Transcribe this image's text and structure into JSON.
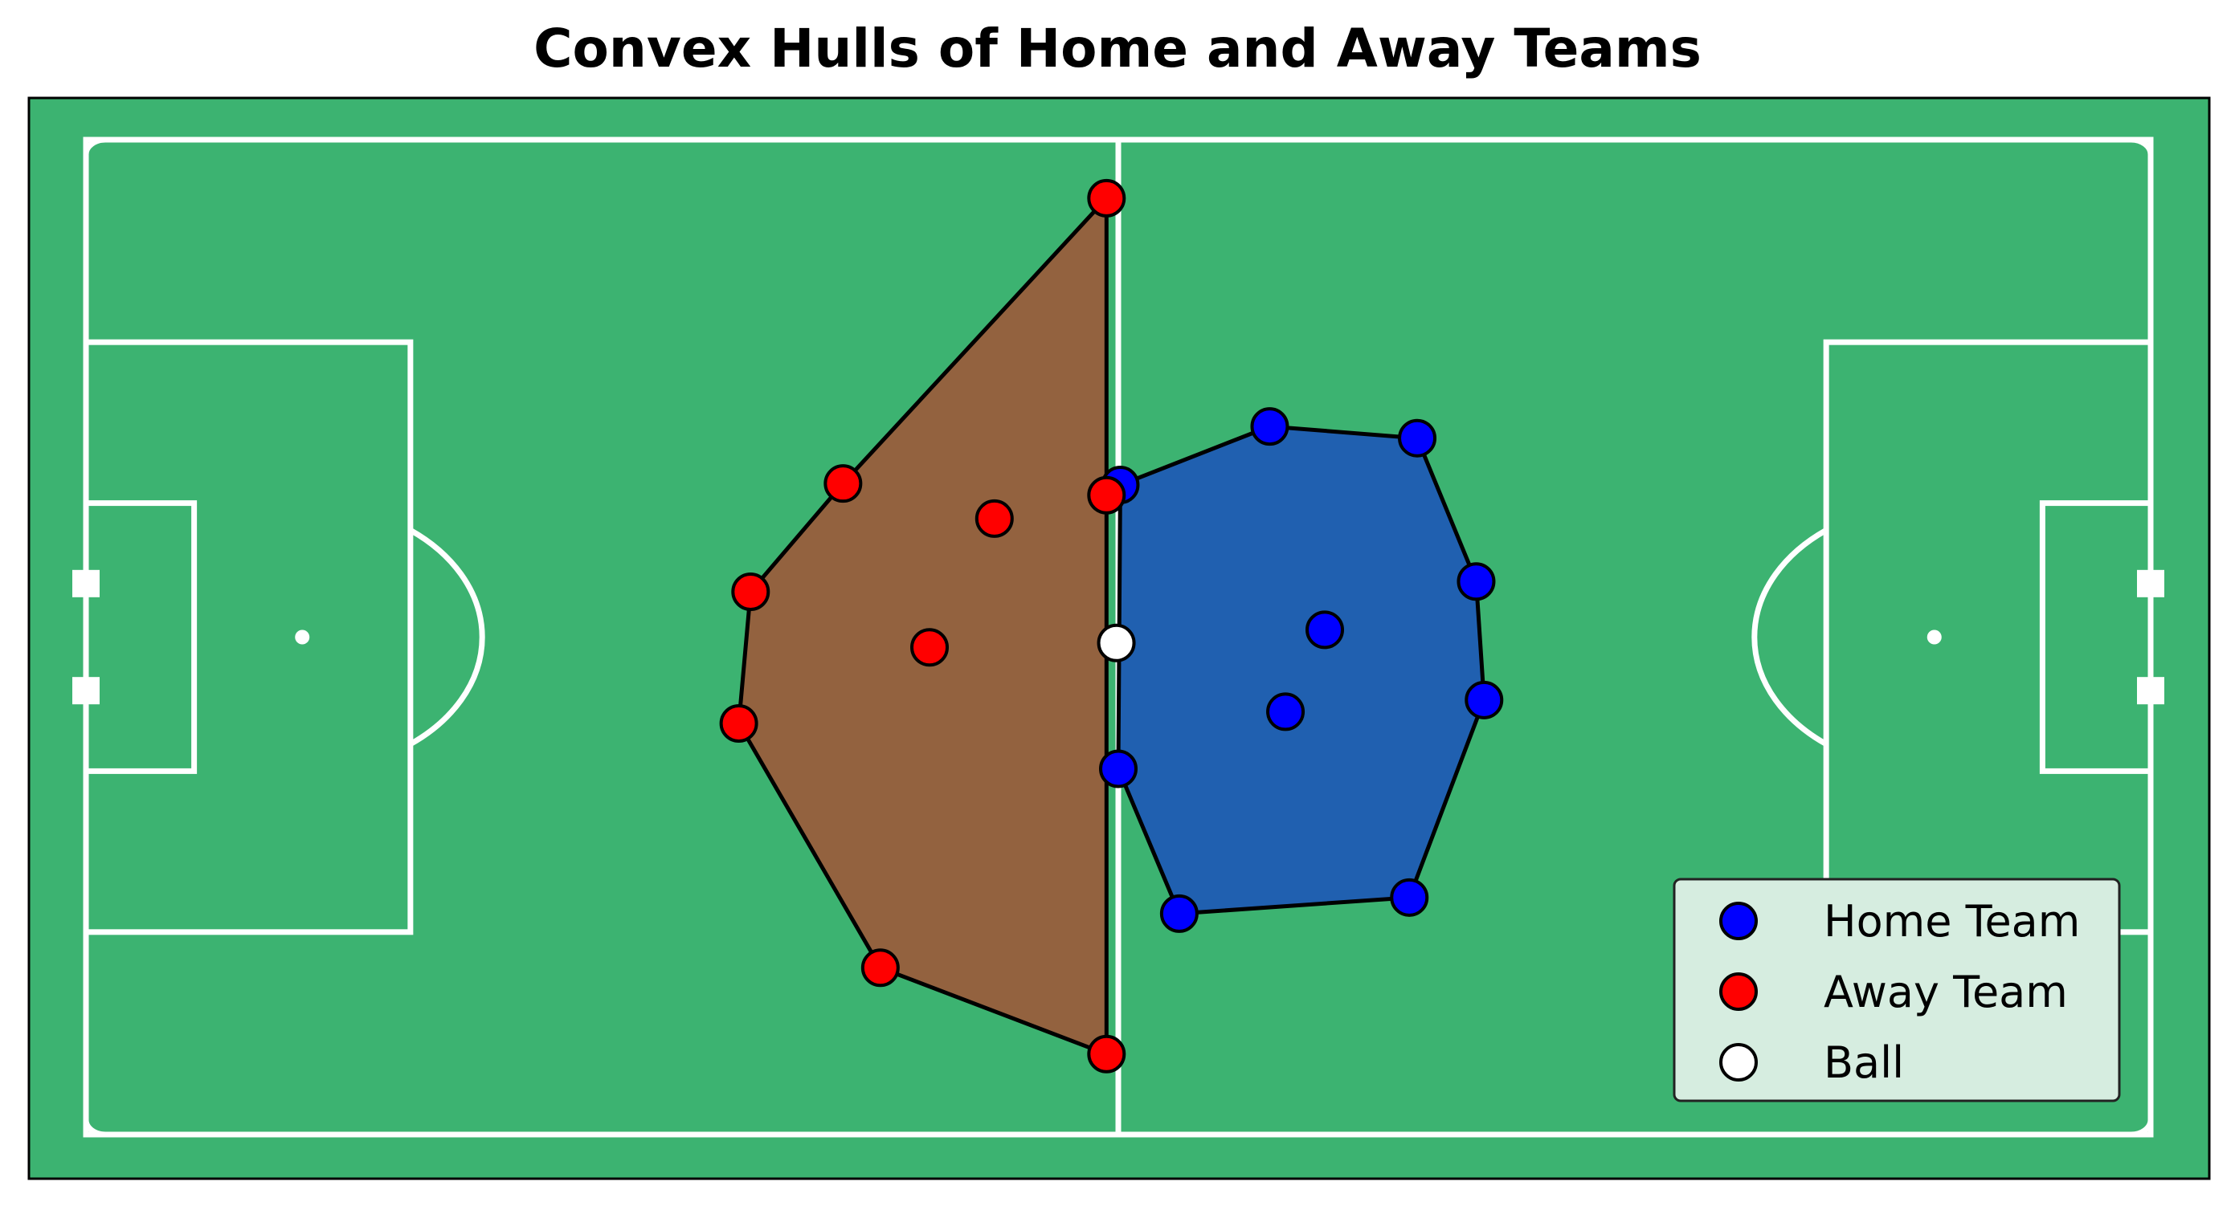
{
  "chart_data": {
    "type": "scatter",
    "title": "Convex Hulls of Home and Away Teams",
    "xlabel": "",
    "ylabel": "",
    "xlim": [
      0,
      105
    ],
    "ylim": [
      0,
      68
    ],
    "grid": false,
    "legend_position": "lower-right",
    "pitch_color": "#3cb371",
    "line_color": "#ffffff",
    "series": [
      {
        "name": "Home Team",
        "color": "#0000ff",
        "hull_color": "#2060b0",
        "points": [
          {
            "x": 52.6,
            "y": 44.4
          },
          {
            "x": 60.2,
            "y": 48.4
          },
          {
            "x": 67.7,
            "y": 47.6
          },
          {
            "x": 70.7,
            "y": 37.8
          },
          {
            "x": 63.0,
            "y": 34.5
          },
          {
            "x": 61.0,
            "y": 28.9
          },
          {
            "x": 71.1,
            "y": 29.7
          },
          {
            "x": 52.5,
            "y": 25.0
          },
          {
            "x": 55.6,
            "y": 15.1
          },
          {
            "x": 67.3,
            "y": 16.2
          }
        ]
      },
      {
        "name": "Away Team",
        "color": "#ff0000",
        "hull_color": "#93623f",
        "points": [
          {
            "x": 51.9,
            "y": 64.0
          },
          {
            "x": 38.5,
            "y": 44.5
          },
          {
            "x": 46.2,
            "y": 42.1
          },
          {
            "x": 51.9,
            "y": 43.7
          },
          {
            "x": 33.8,
            "y": 37.1
          },
          {
            "x": 42.9,
            "y": 33.3
          },
          {
            "x": 33.2,
            "y": 28.1
          },
          {
            "x": 40.4,
            "y": 11.4
          },
          {
            "x": 51.9,
            "y": 5.5
          }
        ]
      },
      {
        "name": "Ball",
        "color": "#ffffff",
        "points": [
          {
            "x": 52.4,
            "y": 33.6
          }
        ]
      }
    ]
  }
}
